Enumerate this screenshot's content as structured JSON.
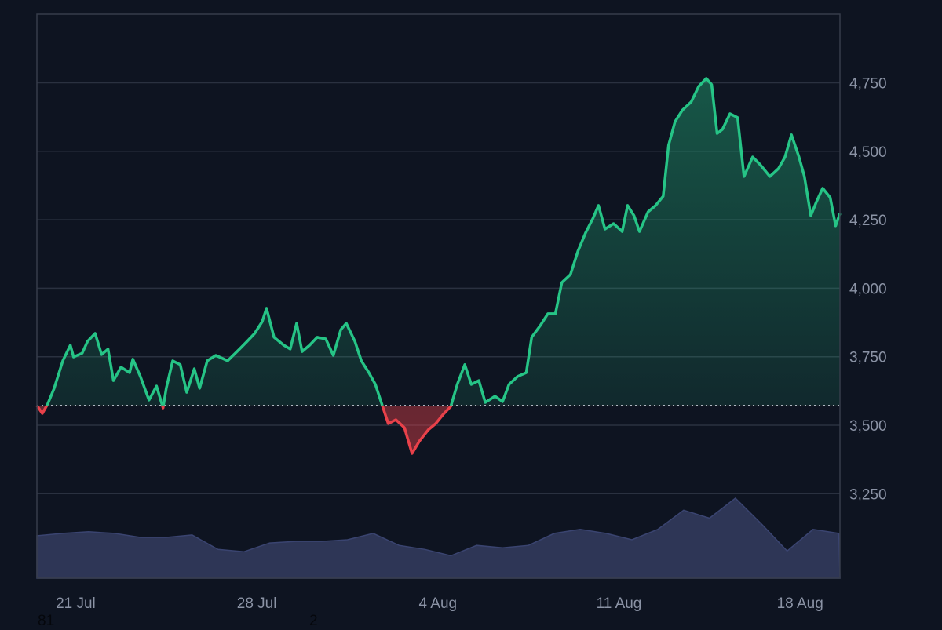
{
  "chart_data": {
    "type": "area",
    "title": "",
    "xlabel": "",
    "ylabel": "",
    "y_axis_position": "right",
    "ylim": [
      3000,
      5000
    ],
    "xlim": [
      "2025-07-19T12:00",
      "2025-08-19T13:00"
    ],
    "grid": true,
    "baseline": 3572,
    "colors": {
      "above": "#26c486",
      "below": "#e8414a",
      "volume": "#2e3656",
      "background": "#0e1421",
      "grid": "#2a3140",
      "tick": "#8b93a5"
    },
    "y_ticks": [
      {
        "value": 3250,
        "label": "3,250"
      },
      {
        "value": 3500,
        "label": "3,500"
      },
      {
        "value": 3750,
        "label": "3,750"
      },
      {
        "value": 4000,
        "label": "4,000"
      },
      {
        "value": 4250,
        "label": "4,250"
      },
      {
        "value": 4500,
        "label": "4,500"
      },
      {
        "value": 4750,
        "label": "4,750"
      }
    ],
    "x_ticks": [
      {
        "value": "2025-07-21T00:00",
        "label": "21 Jul"
      },
      {
        "value": "2025-07-28T00:00",
        "label": "28 Jul"
      },
      {
        "value": "2025-08-04T00:00",
        "label": "4 Aug"
      },
      {
        "value": "2025-08-11T00:00",
        "label": "11 Aug"
      },
      {
        "value": "2025-08-18T00:00",
        "label": "18 Aug"
      }
    ],
    "series": [
      {
        "type": "line",
        "points": [
          [
            "2025-07-19T12:00",
            3572
          ],
          [
            "2025-07-19T17:00",
            3543
          ],
          [
            "2025-07-19T22:00",
            3577
          ],
          [
            "2025-07-20T04:00",
            3635
          ],
          [
            "2025-07-20T12:00",
            3735
          ],
          [
            "2025-07-20T19:00",
            3792
          ],
          [
            "2025-07-20T22:00",
            3749
          ],
          [
            "2025-07-21T06:00",
            3763
          ],
          [
            "2025-07-21T11:00",
            3806
          ],
          [
            "2025-07-21T18:00",
            3835
          ],
          [
            "2025-07-22T00:00",
            3758
          ],
          [
            "2025-07-22T06:00",
            3778
          ],
          [
            "2025-07-22T11:00",
            3663
          ],
          [
            "2025-07-22T18:00",
            3712
          ],
          [
            "2025-07-23T02:00",
            3692
          ],
          [
            "2025-07-23T05:00",
            3741
          ],
          [
            "2025-07-23T12:00",
            3678
          ],
          [
            "2025-07-23T20:00",
            3592
          ],
          [
            "2025-07-24T03:00",
            3643
          ],
          [
            "2025-07-24T09:00",
            3563
          ],
          [
            "2025-07-24T12:00",
            3635
          ],
          [
            "2025-07-24T18:00",
            3735
          ],
          [
            "2025-07-25T01:00",
            3721
          ],
          [
            "2025-07-25T07:00",
            3620
          ],
          [
            "2025-07-25T14:00",
            3706
          ],
          [
            "2025-07-25T19:00",
            3635
          ],
          [
            "2025-07-26T02:00",
            3735
          ],
          [
            "2025-07-26T10:00",
            3755
          ],
          [
            "2025-07-26T21:00",
            3735
          ],
          [
            "2025-07-27T08:00",
            3778
          ],
          [
            "2025-07-27T15:00",
            3806
          ],
          [
            "2025-07-27T22:00",
            3835
          ],
          [
            "2025-07-28T05:00",
            3878
          ],
          [
            "2025-07-28T09:00",
            3927
          ],
          [
            "2025-07-28T16:00",
            3821
          ],
          [
            "2025-07-29T01:00",
            3792
          ],
          [
            "2025-07-29T07:00",
            3778
          ],
          [
            "2025-07-29T13:00",
            3872
          ],
          [
            "2025-07-29T18:00",
            3769
          ],
          [
            "2025-07-30T01:00",
            3792
          ],
          [
            "2025-07-30T08:00",
            3821
          ],
          [
            "2025-07-30T16:00",
            3815
          ],
          [
            "2025-07-30T23:00",
            3755
          ],
          [
            "2025-07-31T06:00",
            3849
          ],
          [
            "2025-07-31T11:00",
            3872
          ],
          [
            "2025-07-31T19:00",
            3806
          ],
          [
            "2025-08-01T01:00",
            3735
          ],
          [
            "2025-08-01T08:00",
            3692
          ],
          [
            "2025-08-01T14:00",
            3649
          ],
          [
            "2025-08-01T20:00",
            3577
          ],
          [
            "2025-08-02T02:00",
            3506
          ],
          [
            "2025-08-02T09:00",
            3520
          ],
          [
            "2025-08-02T17:00",
            3491
          ],
          [
            "2025-08-03T00:00",
            3397
          ],
          [
            "2025-08-03T07:00",
            3443
          ],
          [
            "2025-08-03T15:00",
            3483
          ],
          [
            "2025-08-03T22:00",
            3506
          ],
          [
            "2025-08-04T05:00",
            3540
          ],
          [
            "2025-08-04T12:00",
            3569
          ],
          [
            "2025-08-04T18:00",
            3649
          ],
          [
            "2025-08-05T01:00",
            3721
          ],
          [
            "2025-08-05T07:00",
            3649
          ],
          [
            "2025-08-05T14:00",
            3663
          ],
          [
            "2025-08-05T20:00",
            3583
          ],
          [
            "2025-08-06T05:00",
            3606
          ],
          [
            "2025-08-06T12:00",
            3586
          ],
          [
            "2025-08-06T18:00",
            3649
          ],
          [
            "2025-08-07T02:00",
            3678
          ],
          [
            "2025-08-07T10:00",
            3692
          ],
          [
            "2025-08-07T15:00",
            3821
          ],
          [
            "2025-08-07T23:00",
            3864
          ],
          [
            "2025-08-08T06:00",
            3907
          ],
          [
            "2025-08-08T13:00",
            3907
          ],
          [
            "2025-08-08T19:00",
            4021
          ],
          [
            "2025-08-09T03:00",
            4050
          ],
          [
            "2025-08-09T10:00",
            4136
          ],
          [
            "2025-08-09T17:00",
            4202
          ],
          [
            "2025-08-10T00:00",
            4256
          ],
          [
            "2025-08-10T05:00",
            4302
          ],
          [
            "2025-08-10T11:00",
            4216
          ],
          [
            "2025-08-10T19:00",
            4236
          ],
          [
            "2025-08-11T03:00",
            4207
          ],
          [
            "2025-08-11T08:00",
            4302
          ],
          [
            "2025-08-11T14:00",
            4265
          ],
          [
            "2025-08-11T19:00",
            4207
          ],
          [
            "2025-08-12T03:00",
            4279
          ],
          [
            "2025-08-12T10:00",
            4302
          ],
          [
            "2025-08-12T17:00",
            4336
          ],
          [
            "2025-08-12T22:00",
            4522
          ],
          [
            "2025-08-13T04:00",
            4608
          ],
          [
            "2025-08-13T11:00",
            4651
          ],
          [
            "2025-08-13T19:00",
            4680
          ],
          [
            "2025-08-14T02:00",
            4737
          ],
          [
            "2025-08-14T09:00",
            4766
          ],
          [
            "2025-08-14T14:00",
            4743
          ],
          [
            "2025-08-14T19:00",
            4565
          ],
          [
            "2025-08-15T00:00",
            4580
          ],
          [
            "2025-08-15T07:00",
            4637
          ],
          [
            "2025-08-15T14:00",
            4623
          ],
          [
            "2025-08-15T20:00",
            4408
          ],
          [
            "2025-08-16T04:00",
            4479
          ],
          [
            "2025-08-16T11:00",
            4451
          ],
          [
            "2025-08-16T20:00",
            4408
          ],
          [
            "2025-08-17T04:00",
            4437
          ],
          [
            "2025-08-17T10:00",
            4479
          ],
          [
            "2025-08-17T16:00",
            4560
          ],
          [
            "2025-08-17T23:00",
            4479
          ],
          [
            "2025-08-18T04:00",
            4408
          ],
          [
            "2025-08-18T10:00",
            4265
          ],
          [
            "2025-08-18T15:00",
            4314
          ],
          [
            "2025-08-18T21:00",
            4365
          ],
          [
            "2025-08-19T04:00",
            4331
          ],
          [
            "2025-08-19T09:00",
            4228
          ],
          [
            "2025-08-19T13:00",
            4273
          ]
        ]
      },
      {
        "type": "volume",
        "relative": true,
        "points": [
          [
            "2025-07-19T12:00",
            53
          ],
          [
            "2025-07-20T12:00",
            56
          ],
          [
            "2025-07-21T12:00",
            58
          ],
          [
            "2025-07-22T12:00",
            56
          ],
          [
            "2025-07-23T12:00",
            51
          ],
          [
            "2025-07-24T12:00",
            51
          ],
          [
            "2025-07-25T12:00",
            54
          ],
          [
            "2025-07-26T12:00",
            36
          ],
          [
            "2025-07-27T12:00",
            33
          ],
          [
            "2025-07-28T12:00",
            44
          ],
          [
            "2025-07-29T12:00",
            46
          ],
          [
            "2025-07-30T12:00",
            46
          ],
          [
            "2025-07-31T12:00",
            48
          ],
          [
            "2025-08-01T12:00",
            56
          ],
          [
            "2025-08-02T12:00",
            41
          ],
          [
            "2025-08-03T12:00",
            36
          ],
          [
            "2025-08-04T12:00",
            28
          ],
          [
            "2025-08-05T12:00",
            41
          ],
          [
            "2025-08-06T12:00",
            38
          ],
          [
            "2025-08-07T12:00",
            41
          ],
          [
            "2025-08-08T12:00",
            56
          ],
          [
            "2025-08-09T12:00",
            61
          ],
          [
            "2025-08-10T12:00",
            56
          ],
          [
            "2025-08-11T12:00",
            48
          ],
          [
            "2025-08-12T12:00",
            61
          ],
          [
            "2025-08-13T12:00",
            85
          ],
          [
            "2025-08-14T12:00",
            75
          ],
          [
            "2025-08-15T12:00",
            100
          ],
          [
            "2025-08-16T12:00",
            68
          ],
          [
            "2025-08-17T12:00",
            34
          ],
          [
            "2025-08-18T12:00",
            61
          ],
          [
            "2025-08-19T12:00",
            56
          ]
        ]
      }
    ]
  },
  "footer": {
    "left_text": "81",
    "mid_text": "2"
  }
}
